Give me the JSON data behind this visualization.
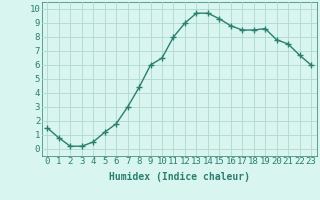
{
  "x": [
    0,
    1,
    2,
    3,
    4,
    5,
    6,
    7,
    8,
    9,
    10,
    11,
    12,
    13,
    14,
    15,
    16,
    17,
    18,
    19,
    20,
    21,
    22,
    23
  ],
  "y": [
    1.5,
    0.8,
    0.2,
    0.2,
    0.5,
    1.2,
    1.8,
    3.0,
    4.4,
    6.0,
    6.5,
    8.0,
    9.0,
    9.7,
    9.7,
    9.3,
    8.8,
    8.5,
    8.5,
    8.6,
    7.8,
    7.5,
    6.7,
    6.0
  ],
  "line_color": "#2a7f6f",
  "marker": "+",
  "marker_size": 4,
  "bg_color": "#d8f5f0",
  "grid_color": "#b0d8ce",
  "xlabel": "Humidex (Indice chaleur)",
  "xlim": [
    -0.5,
    23.5
  ],
  "ylim": [
    -0.5,
    10.5
  ],
  "xtick_labels": [
    "0",
    "1",
    "2",
    "3",
    "4",
    "5",
    "6",
    "7",
    "8",
    "9",
    "10",
    "11",
    "12",
    "13",
    "14",
    "15",
    "16",
    "17",
    "18",
    "19",
    "20",
    "21",
    "22",
    "23"
  ],
  "ytick_labels": [
    "0",
    "1",
    "2",
    "3",
    "4",
    "5",
    "6",
    "7",
    "8",
    "9",
    "10"
  ],
  "xlabel_fontsize": 7,
  "tick_fontsize": 6.5,
  "tick_color": "#2a7f6f",
  "axis_color": "#2a7f6f",
  "line_width": 1.0
}
